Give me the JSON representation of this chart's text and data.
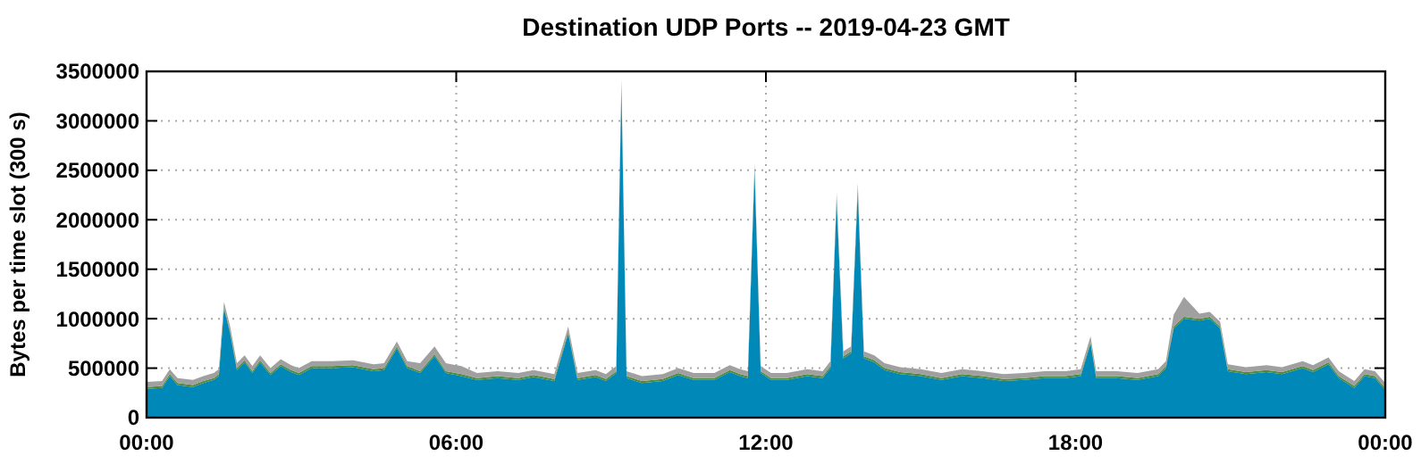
{
  "chart_data": {
    "type": "area",
    "stacked": true,
    "title": "Destination UDP Ports -- 2019-04-23 GMT",
    "ylabel": "Bytes per time slot (300 s)",
    "x": [
      0,
      0.3,
      0.45,
      0.6,
      0.9,
      1.1,
      1.3,
      1.4,
      1.5,
      1.62,
      1.75,
      1.9,
      2.05,
      2.2,
      2.4,
      2.6,
      2.8,
      2.95,
      3.2,
      3.6,
      4.0,
      4.4,
      4.6,
      4.85,
      5.05,
      5.3,
      5.58,
      5.8,
      6.1,
      6.4,
      6.8,
      7.2,
      7.5,
      7.9,
      8.17,
      8.35,
      8.7,
      8.9,
      9.1,
      9.2,
      9.3,
      9.6,
      10.0,
      10.3,
      10.6,
      11.0,
      11.3,
      11.5,
      11.65,
      11.78,
      11.9,
      12.1,
      12.4,
      12.8,
      13.1,
      13.25,
      13.37,
      13.5,
      13.65,
      13.78,
      13.9,
      14.1,
      14.3,
      14.6,
      15.0,
      15.4,
      15.8,
      16.2,
      16.6,
      17.0,
      17.4,
      17.8,
      18.1,
      18.29,
      18.4,
      18.8,
      19.2,
      19.6,
      19.75,
      19.9,
      20.1,
      20.4,
      20.6,
      20.8,
      20.95,
      21.3,
      21.7,
      22.0,
      22.4,
      22.6,
      22.9,
      23.1,
      23.4,
      23.6,
      23.8,
      24
    ],
    "series": [
      {
        "color": "#0088b8",
        "values": [
          290000,
          300000,
          420000,
          330000,
          310000,
          350000,
          380000,
          420000,
          1100000,
          850000,
          480000,
          560000,
          450000,
          560000,
          430000,
          520000,
          460000,
          430000,
          500000,
          500000,
          510000,
          470000,
          480000,
          700000,
          500000,
          450000,
          620000,
          450000,
          420000,
          380000,
          400000,
          380000,
          410000,
          370000,
          850000,
          380000,
          410000,
          370000,
          450000,
          3350000,
          400000,
          350000,
          370000,
          430000,
          380000,
          380000,
          460000,
          420000,
          400000,
          2500000,
          450000,
          380000,
          380000,
          420000,
          400000,
          500000,
          2200000,
          600000,
          650000,
          2300000,
          600000,
          560000,
          480000,
          440000,
          420000,
          380000,
          420000,
          400000,
          370000,
          380000,
          400000,
          400000,
          420000,
          750000,
          400000,
          400000,
          380000,
          420000,
          500000,
          900000,
          1000000,
          980000,
          1000000,
          900000,
          470000,
          440000,
          460000,
          440000,
          500000,
          460000,
          540000,
          400000,
          300000,
          420000,
          400000,
          280000
        ]
      },
      {
        "color": "#4f8a3a",
        "values": [
          20000,
          20000,
          20000,
          20000,
          20000,
          20000,
          20000,
          20000,
          20000,
          20000,
          20000,
          20000,
          20000,
          20000,
          20000,
          20000,
          20000,
          20000,
          20000,
          20000,
          20000,
          20000,
          20000,
          20000,
          20000,
          20000,
          20000,
          20000,
          20000,
          20000,
          20000,
          20000,
          20000,
          20000,
          20000,
          20000,
          20000,
          20000,
          20000,
          20000,
          20000,
          20000,
          20000,
          20000,
          20000,
          20000,
          20000,
          20000,
          20000,
          20000,
          20000,
          20000,
          20000,
          20000,
          20000,
          20000,
          20000,
          20000,
          20000,
          20000,
          20000,
          20000,
          20000,
          20000,
          20000,
          20000,
          20000,
          20000,
          20000,
          20000,
          20000,
          20000,
          20000,
          20000,
          20000,
          20000,
          20000,
          20000,
          20000,
          20000,
          20000,
          20000,
          20000,
          20000,
          20000,
          20000,
          20000,
          20000,
          20000,
          20000,
          20000,
          20000,
          20000,
          20000,
          20000,
          20000
        ]
      },
      {
        "color": "#a0a0a0",
        "values": [
          50000,
          50000,
          50000,
          50000,
          50000,
          50000,
          50000,
          50000,
          50000,
          50000,
          50000,
          50000,
          50000,
          50000,
          50000,
          50000,
          50000,
          50000,
          50000,
          50000,
          50000,
          50000,
          50000,
          50000,
          50000,
          80000,
          80000,
          80000,
          80000,
          50000,
          50000,
          50000,
          50000,
          50000,
          50000,
          50000,
          50000,
          50000,
          50000,
          50000,
          50000,
          50000,
          50000,
          50000,
          50000,
          50000,
          50000,
          50000,
          50000,
          50000,
          50000,
          50000,
          50000,
          50000,
          50000,
          50000,
          50000,
          50000,
          50000,
          50000,
          50000,
          50000,
          50000,
          50000,
          50000,
          50000,
          50000,
          50000,
          50000,
          50000,
          50000,
          50000,
          50000,
          50000,
          50000,
          50000,
          50000,
          50000,
          50000,
          120000,
          200000,
          50000,
          50000,
          50000,
          50000,
          50000,
          50000,
          50000,
          50000,
          50000,
          50000,
          50000,
          50000,
          50000,
          50000,
          50000
        ]
      }
    ],
    "xlim": [
      0,
      24
    ],
    "xticks": [
      {
        "value": 0,
        "label": "00:00"
      },
      {
        "value": 6,
        "label": "06:00"
      },
      {
        "value": 12,
        "label": "12:00"
      },
      {
        "value": 18,
        "label": "18:00"
      },
      {
        "value": 24,
        "label": "00:00"
      }
    ],
    "ylim": [
      0,
      3500000
    ],
    "yticks": [
      0,
      500000,
      1000000,
      1500000,
      2000000,
      2500000,
      3000000,
      3500000
    ],
    "grid": true
  }
}
